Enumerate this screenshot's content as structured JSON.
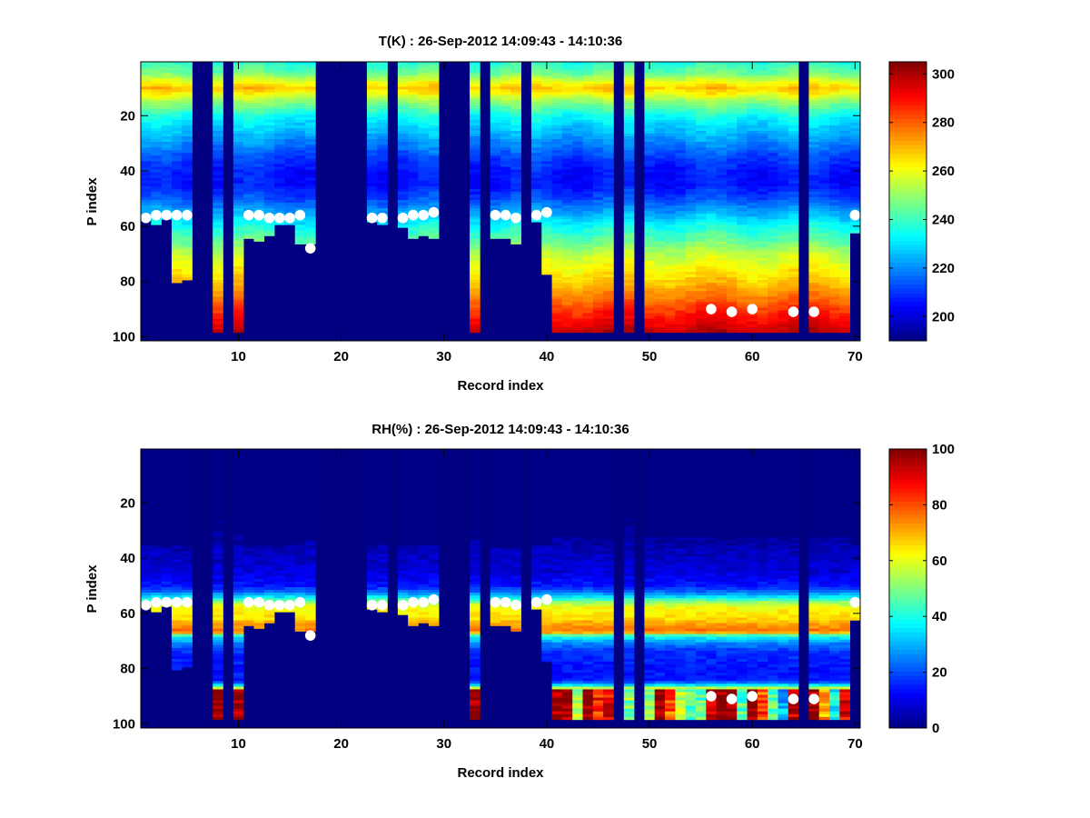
{
  "chart_data": [
    {
      "type": "heatmap",
      "title": "T(K) : 26-Sep-2012 14:09:43 - 14:10:36",
      "xlabel": "Record index",
      "ylabel": "P index",
      "xlim": [
        0.5,
        70.5
      ],
      "ylim": [
        0.5,
        101.5
      ],
      "y_reversed": true,
      "xticks": [
        "10",
        "20",
        "30",
        "40",
        "50",
        "60",
        "70"
      ],
      "yticks": [
        "20",
        "40",
        "60",
        "80",
        "100"
      ],
      "colormap": "jet",
      "clim": [
        190,
        305
      ],
      "colorbar_ticks": [
        "200",
        "220",
        "240",
        "260",
        "280",
        "300"
      ],
      "profile_keypoints": [
        [
          1,
          238
        ],
        [
          5,
          247
        ],
        [
          8,
          261
        ],
        [
          10,
          268
        ],
        [
          12,
          262
        ],
        [
          15,
          250
        ],
        [
          20,
          235
        ],
        [
          25,
          227
        ],
        [
          30,
          220
        ],
        [
          35,
          212
        ],
        [
          40,
          207
        ],
        [
          45,
          206
        ],
        [
          50,
          213
        ],
        [
          55,
          224
        ],
        [
          60,
          235
        ],
        [
          65,
          244
        ],
        [
          70,
          255
        ],
        [
          75,
          262
        ],
        [
          80,
          268
        ],
        [
          85,
          276
        ],
        [
          90,
          285
        ],
        [
          95,
          293
        ],
        [
          98,
          298
        ]
      ],
      "marker_color": "#ffffff"
    },
    {
      "type": "heatmap",
      "title": "RH(%) : 26-Sep-2012 14:09:43 - 14:10:36",
      "xlabel": "Record index",
      "ylabel": "P index",
      "xlim": [
        0.5,
        70.5
      ],
      "ylim": [
        0.5,
        101.5
      ],
      "y_reversed": true,
      "xticks": [
        "10",
        "20",
        "30",
        "40",
        "50",
        "60",
        "70"
      ],
      "yticks": [
        "20",
        "40",
        "60",
        "80",
        "100"
      ],
      "colormap": "jet",
      "clim": [
        0,
        100
      ],
      "colorbar_ticks": [
        "0",
        "20",
        "40",
        "60",
        "80",
        "100"
      ],
      "profile_keypoints": [
        [
          1,
          0
        ],
        [
          25,
          1
        ],
        [
          33,
          3
        ],
        [
          38,
          6
        ],
        [
          45,
          9
        ],
        [
          50,
          14
        ],
        [
          52,
          22
        ],
        [
          54,
          35
        ],
        [
          56,
          52
        ],
        [
          58,
          62
        ],
        [
          62,
          66
        ],
        [
          64,
          72
        ],
        [
          66,
          76
        ],
        [
          67,
          70
        ],
        [
          68,
          45
        ],
        [
          69,
          35
        ],
        [
          71,
          25
        ],
        [
          74,
          17
        ],
        [
          80,
          14
        ],
        [
          84,
          15
        ],
        [
          85,
          22
        ],
        [
          86,
          35
        ],
        [
          87,
          55
        ]
      ],
      "marker_color": "#ffffff"
    }
  ],
  "records": {
    "count": 70,
    "bottom_level": [
      57,
      59,
      57,
      80,
      79,
      0,
      0,
      98,
      0,
      98,
      64,
      65,
      63,
      59,
      59,
      66,
      66,
      0,
      0,
      0,
      0,
      0,
      58,
      59,
      0,
      60,
      64,
      63,
      64,
      0,
      0,
      0,
      98,
      0,
      64,
      64,
      66,
      0,
      58,
      77,
      98,
      98,
      98,
      98,
      98,
      98,
      0,
      98,
      0,
      98,
      98,
      98,
      98,
      98,
      98,
      98,
      98,
      98,
      98,
      98,
      98,
      98,
      98,
      98,
      0,
      98,
      98,
      98,
      98,
      62
    ],
    "rh_top_level": [
      36,
      36,
      36,
      36,
      36,
      0,
      0,
      27,
      0,
      32,
      36,
      36,
      36,
      36,
      36,
      35,
      34,
      0,
      0,
      0,
      0,
      0,
      36,
      35,
      0,
      36,
      36,
      36,
      36,
      0,
      0,
      0,
      28,
      0,
      37,
      37,
      37,
      0,
      36,
      36,
      33,
      33,
      33,
      33,
      33,
      33,
      0,
      26,
      0,
      33,
      33,
      33,
      33,
      33,
      33,
      33,
      33,
      33,
      33,
      33,
      33,
      33,
      33,
      33,
      0,
      33,
      33,
      33,
      33,
      36
    ],
    "rh_surface": [
      0,
      0,
      0,
      0,
      0,
      0,
      0,
      100,
      0,
      100,
      0,
      0,
      0,
      0,
      0,
      0,
      0,
      0,
      0,
      0,
      0,
      0,
      0,
      0,
      0,
      0,
      0,
      0,
      0,
      0,
      0,
      0,
      100,
      0,
      0,
      0,
      0,
      0,
      0,
      0,
      100,
      100,
      55,
      100,
      85,
      88,
      0,
      50,
      0,
      55,
      100,
      80,
      55,
      45,
      45,
      95,
      100,
      100,
      45,
      100,
      80,
      45,
      30,
      95,
      0,
      100,
      70,
      40,
      90,
      0
    ],
    "markers": [
      [
        1,
        57
      ],
      [
        2,
        56
      ],
      [
        3,
        56
      ],
      [
        4,
        56
      ],
      [
        5,
        56
      ],
      [
        11,
        56
      ],
      [
        12,
        56
      ],
      [
        13,
        57
      ],
      [
        14,
        57
      ],
      [
        15,
        57
      ],
      [
        16,
        56
      ],
      [
        17,
        68
      ],
      [
        23,
        57
      ],
      [
        24,
        57
      ],
      [
        26,
        57
      ],
      [
        27,
        56
      ],
      [
        28,
        56
      ],
      [
        29,
        55
      ],
      [
        35,
        56
      ],
      [
        36,
        56
      ],
      [
        37,
        57
      ],
      [
        39,
        56
      ],
      [
        40,
        55
      ],
      [
        56,
        90
      ],
      [
        58,
        91
      ],
      [
        60,
        90
      ],
      [
        64,
        91
      ],
      [
        66,
        91
      ],
      [
        70,
        56
      ]
    ]
  }
}
